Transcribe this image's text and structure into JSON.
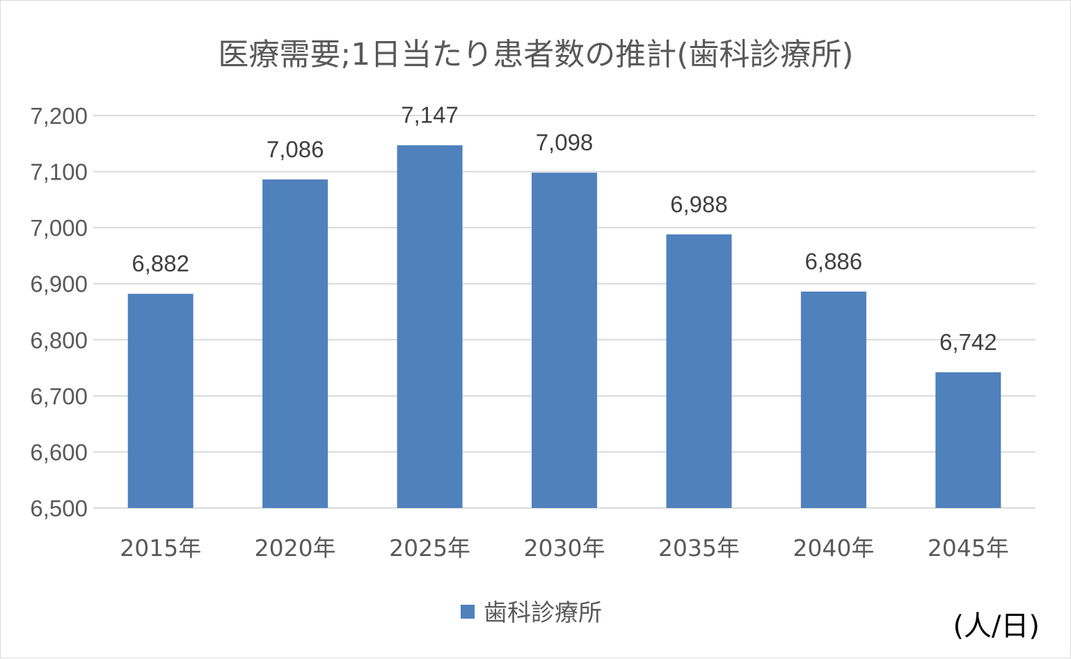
{
  "chart_data": {
    "type": "bar",
    "title": "医療需要;1日当たり患者数の推計(歯科診療所)",
    "categories": [
      "2015年",
      "2020年",
      "2025年",
      "2030年",
      "2035年",
      "2040年",
      "2045年"
    ],
    "series": [
      {
        "name": "歯科診療所",
        "values": [
          6882,
          7086,
          7147,
          7098,
          6988,
          6886,
          6742
        ],
        "color": "#4f81bd"
      }
    ],
    "data_labels": [
      "6,882",
      "7,086",
      "7,147",
      "7,098",
      "6,988",
      "6,886",
      "6,742"
    ],
    "ylim": [
      6500,
      7200
    ],
    "y_ticks": [
      "6,500",
      "6,600",
      "6,700",
      "6,800",
      "6,900",
      "7,000",
      "7,100",
      "7,200"
    ],
    "y_tick_values": [
      6500,
      6600,
      6700,
      6800,
      6900,
      7000,
      7100,
      7200
    ],
    "grid": true,
    "legend_position": "bottom",
    "unit_note": "(人/日)"
  }
}
